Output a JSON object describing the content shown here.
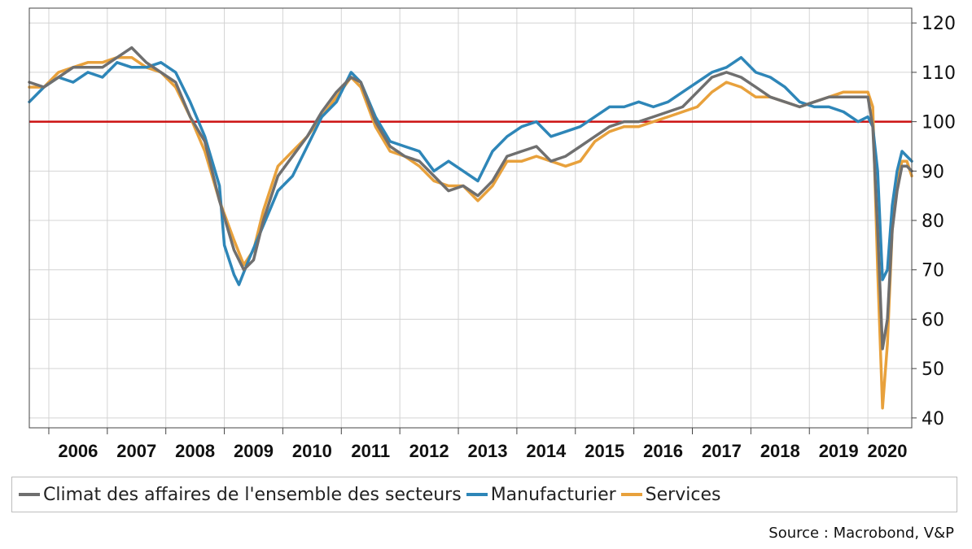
{
  "chart_data": {
    "type": "line",
    "title": "",
    "xlabel": "",
    "ylabel": "",
    "ylim": [
      38,
      123
    ],
    "xlim": [
      "2005-09",
      "2020-10"
    ],
    "y_ticks": [
      40,
      50,
      60,
      70,
      80,
      90,
      100,
      110,
      120
    ],
    "x_tick_labels": [
      "2006",
      "2007",
      "2008",
      "2009",
      "2010",
      "2011",
      "2012",
      "2013",
      "2014",
      "2015",
      "2016",
      "2017",
      "2018",
      "2019",
      "2020"
    ],
    "y_axis_position": "right",
    "grid": true,
    "reference_line": {
      "y": 100,
      "color": "#cc1111"
    },
    "legend_position": "bottom",
    "series": [
      {
        "name": "Climat des affaires de l'ensemble des secteurs",
        "color": "#6f6f6f",
        "points": [
          [
            "2005-09",
            108
          ],
          [
            "2005-12",
            107
          ],
          [
            "2006-03",
            109
          ],
          [
            "2006-06",
            111
          ],
          [
            "2006-09",
            111
          ],
          [
            "2006-12",
            111
          ],
          [
            "2007-03",
            113
          ],
          [
            "2007-06",
            115
          ],
          [
            "2007-09",
            112
          ],
          [
            "2007-12",
            110
          ],
          [
            "2008-03",
            108
          ],
          [
            "2008-06",
            101
          ],
          [
            "2008-09",
            96
          ],
          [
            "2008-12",
            84
          ],
          [
            "2009-03",
            74
          ],
          [
            "2009-05",
            70
          ],
          [
            "2009-07",
            72
          ],
          [
            "2009-09",
            80
          ],
          [
            "2009-12",
            89
          ],
          [
            "2010-03",
            93
          ],
          [
            "2010-06",
            97
          ],
          [
            "2010-09",
            102
          ],
          [
            "2010-12",
            106
          ],
          [
            "2011-03",
            109
          ],
          [
            "2011-05",
            108
          ],
          [
            "2011-08",
            100
          ],
          [
            "2011-11",
            95
          ],
          [
            "2012-02",
            93
          ],
          [
            "2012-05",
            92
          ],
          [
            "2012-08",
            89
          ],
          [
            "2012-11",
            86
          ],
          [
            "2013-02",
            87
          ],
          [
            "2013-05",
            85
          ],
          [
            "2013-08",
            88
          ],
          [
            "2013-11",
            93
          ],
          [
            "2014-02",
            94
          ],
          [
            "2014-05",
            95
          ],
          [
            "2014-08",
            92
          ],
          [
            "2014-11",
            93
          ],
          [
            "2015-02",
            95
          ],
          [
            "2015-05",
            97
          ],
          [
            "2015-08",
            99
          ],
          [
            "2015-11",
            100
          ],
          [
            "2016-02",
            100
          ],
          [
            "2016-05",
            101
          ],
          [
            "2016-08",
            102
          ],
          [
            "2016-11",
            103
          ],
          [
            "2017-02",
            106
          ],
          [
            "2017-05",
            109
          ],
          [
            "2017-08",
            110
          ],
          [
            "2017-11",
            109
          ],
          [
            "2018-02",
            107
          ],
          [
            "2018-05",
            105
          ],
          [
            "2018-08",
            104
          ],
          [
            "2018-11",
            103
          ],
          [
            "2019-02",
            104
          ],
          [
            "2019-05",
            105
          ],
          [
            "2019-08",
            105
          ],
          [
            "2019-11",
            105
          ],
          [
            "2020-01",
            105
          ],
          [
            "2020-02",
            99
          ],
          [
            "2020-03",
            78
          ],
          [
            "2020-04",
            54
          ],
          [
            "2020-05",
            60
          ],
          [
            "2020-06",
            78
          ],
          [
            "2020-07",
            86
          ],
          [
            "2020-08",
            91
          ],
          [
            "2020-09",
            91
          ],
          [
            "2020-10",
            90
          ]
        ]
      },
      {
        "name": "Manufacturier",
        "color": "#2e86b8",
        "points": [
          [
            "2005-09",
            104
          ],
          [
            "2005-12",
            107
          ],
          [
            "2006-03",
            109
          ],
          [
            "2006-06",
            108
          ],
          [
            "2006-09",
            110
          ],
          [
            "2006-12",
            109
          ],
          [
            "2007-03",
            112
          ],
          [
            "2007-06",
            111
          ],
          [
            "2007-09",
            111
          ],
          [
            "2007-12",
            112
          ],
          [
            "2008-03",
            110
          ],
          [
            "2008-06",
            104
          ],
          [
            "2008-09",
            97
          ],
          [
            "2008-12",
            87
          ],
          [
            "2009-01",
            75
          ],
          [
            "2009-03",
            69
          ],
          [
            "2009-04",
            67
          ],
          [
            "2009-06",
            72
          ],
          [
            "2009-09",
            79
          ],
          [
            "2009-12",
            86
          ],
          [
            "2010-03",
            89
          ],
          [
            "2010-06",
            95
          ],
          [
            "2010-09",
            101
          ],
          [
            "2010-12",
            104
          ],
          [
            "2011-03",
            110
          ],
          [
            "2011-05",
            108
          ],
          [
            "2011-08",
            101
          ],
          [
            "2011-11",
            96
          ],
          [
            "2012-02",
            95
          ],
          [
            "2012-05",
            94
          ],
          [
            "2012-08",
            90
          ],
          [
            "2012-11",
            92
          ],
          [
            "2013-02",
            90
          ],
          [
            "2013-05",
            88
          ],
          [
            "2013-08",
            94
          ],
          [
            "2013-11",
            97
          ],
          [
            "2014-02",
            99
          ],
          [
            "2014-05",
            100
          ],
          [
            "2014-08",
            97
          ],
          [
            "2014-11",
            98
          ],
          [
            "2015-02",
            99
          ],
          [
            "2015-05",
            101
          ],
          [
            "2015-08",
            103
          ],
          [
            "2015-11",
            103
          ],
          [
            "2016-02",
            104
          ],
          [
            "2016-05",
            103
          ],
          [
            "2016-08",
            104
          ],
          [
            "2016-11",
            106
          ],
          [
            "2017-02",
            108
          ],
          [
            "2017-05",
            110
          ],
          [
            "2017-08",
            111
          ],
          [
            "2017-11",
            113
          ],
          [
            "2018-02",
            110
          ],
          [
            "2018-05",
            109
          ],
          [
            "2018-08",
            107
          ],
          [
            "2018-11",
            104
          ],
          [
            "2019-02",
            103
          ],
          [
            "2019-05",
            103
          ],
          [
            "2019-08",
            102
          ],
          [
            "2019-11",
            100
          ],
          [
            "2020-01",
            101
          ],
          [
            "2020-02",
            99
          ],
          [
            "2020-03",
            90
          ],
          [
            "2020-04",
            68
          ],
          [
            "2020-05",
            70
          ],
          [
            "2020-06",
            83
          ],
          [
            "2020-07",
            90
          ],
          [
            "2020-08",
            94
          ],
          [
            "2020-09",
            93
          ],
          [
            "2020-10",
            92
          ]
        ]
      },
      {
        "name": "Services",
        "color": "#e8a13c",
        "points": [
          [
            "2005-09",
            107
          ],
          [
            "2005-12",
            107
          ],
          [
            "2006-03",
            110
          ],
          [
            "2006-06",
            111
          ],
          [
            "2006-09",
            112
          ],
          [
            "2006-12",
            112
          ],
          [
            "2007-03",
            113
          ],
          [
            "2007-06",
            113
          ],
          [
            "2007-09",
            111
          ],
          [
            "2007-12",
            110
          ],
          [
            "2008-03",
            107
          ],
          [
            "2008-06",
            101
          ],
          [
            "2008-09",
            94
          ],
          [
            "2008-12",
            84
          ],
          [
            "2009-03",
            76
          ],
          [
            "2009-05",
            71
          ],
          [
            "2009-07",
            74
          ],
          [
            "2009-09",
            82
          ],
          [
            "2009-12",
            91
          ],
          [
            "2010-03",
            94
          ],
          [
            "2010-06",
            97
          ],
          [
            "2010-09",
            101
          ],
          [
            "2010-12",
            105
          ],
          [
            "2011-03",
            109
          ],
          [
            "2011-05",
            107
          ],
          [
            "2011-08",
            99
          ],
          [
            "2011-11",
            94
          ],
          [
            "2012-02",
            93
          ],
          [
            "2012-05",
            91
          ],
          [
            "2012-08",
            88
          ],
          [
            "2012-11",
            87
          ],
          [
            "2013-02",
            87
          ],
          [
            "2013-05",
            84
          ],
          [
            "2013-08",
            87
          ],
          [
            "2013-11",
            92
          ],
          [
            "2014-02",
            92
          ],
          [
            "2014-05",
            93
          ],
          [
            "2014-08",
            92
          ],
          [
            "2014-11",
            91
          ],
          [
            "2015-02",
            92
          ],
          [
            "2015-05",
            96
          ],
          [
            "2015-08",
            98
          ],
          [
            "2015-11",
            99
          ],
          [
            "2016-02",
            99
          ],
          [
            "2016-05",
            100
          ],
          [
            "2016-08",
            101
          ],
          [
            "2016-11",
            102
          ],
          [
            "2017-02",
            103
          ],
          [
            "2017-05",
            106
          ],
          [
            "2017-08",
            108
          ],
          [
            "2017-11",
            107
          ],
          [
            "2018-02",
            105
          ],
          [
            "2018-05",
            105
          ],
          [
            "2018-08",
            104
          ],
          [
            "2018-11",
            103
          ],
          [
            "2019-02",
            104
          ],
          [
            "2019-05",
            105
          ],
          [
            "2019-08",
            106
          ],
          [
            "2019-11",
            106
          ],
          [
            "2020-01",
            106
          ],
          [
            "2020-02",
            103
          ],
          [
            "2020-03",
            70
          ],
          [
            "2020-04",
            42
          ],
          [
            "2020-05",
            55
          ],
          [
            "2020-06",
            78
          ],
          [
            "2020-07",
            88
          ],
          [
            "2020-08",
            92
          ],
          [
            "2020-09",
            92
          ],
          [
            "2020-10",
            89
          ]
        ]
      }
    ]
  },
  "source": "Source : Macrobond, V&P"
}
